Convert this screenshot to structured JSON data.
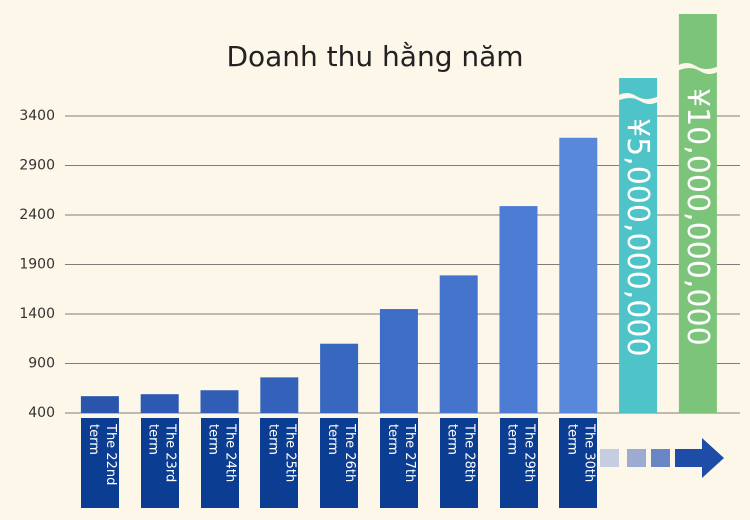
{
  "chart_data": {
    "type": "bar",
    "title": "Doanh thu hằng năm",
    "categories": [
      "The 22nd term",
      "The 23rd term",
      "The 24th term",
      "The 25th term",
      "The 26th term",
      "The 27th term",
      "The 28th term",
      "The 29th term",
      "The 30th term"
    ],
    "values": [
      570,
      590,
      630,
      760,
      1100,
      1450,
      1790,
      2490,
      3180
    ],
    "colors": [
      "#2b55ad",
      "#2e59b2",
      "#315db6",
      "#3462bb",
      "#3867c0",
      "#3d6dc6",
      "#4474cc",
      "#4c7cd3",
      "#5888dc"
    ],
    "label_color": "#0b3e93",
    "targets": [
      {
        "label": "¥5,000,000,000",
        "color": "#4fc4c8"
      },
      {
        "label": "¥10,000,000,000",
        "color": "#7cc47a"
      }
    ],
    "ylim": [
      400,
      3400
    ],
    "yticks": [
      400,
      900,
      1400,
      1900,
      2400,
      2900,
      3400
    ],
    "grid": true
  }
}
